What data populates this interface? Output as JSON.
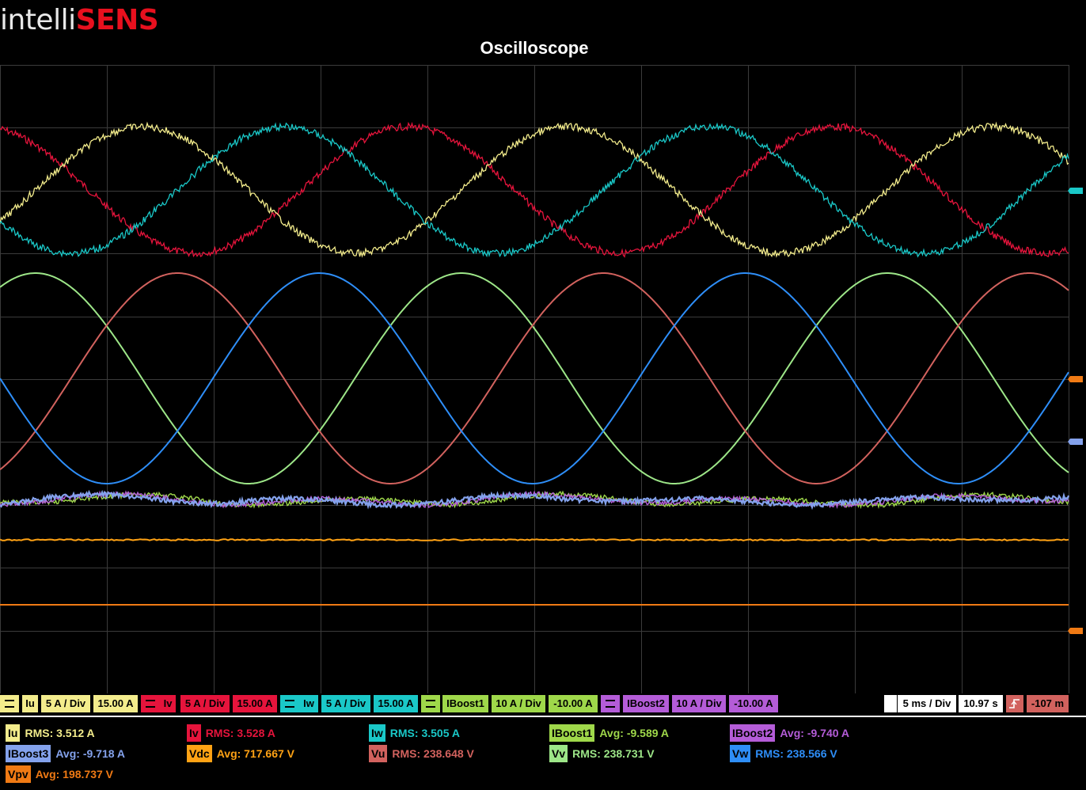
{
  "brand": {
    "part1": "intelli",
    "part2": "SENS"
  },
  "title": "Oscilloscope",
  "colors": {
    "Iu": "#f3ec8c",
    "Iv": "#e6143c",
    "Iw": "#1ac8c8",
    "IBoost1": "#9fd84a",
    "IBoost2": "#b45cd8",
    "IBoost3": "#84a2ec",
    "Vdc": "#ffa214",
    "Vpv": "#f07a14",
    "Vu": "#d2625e",
    "Vv": "#9de688",
    "Vw": "#2e8ef8",
    "grid": "#3b3b3b"
  },
  "channels": [
    {
      "name": "Iu",
      "scale": "5 A / Div",
      "offset": "15.00 A",
      "color": "#f3ec8c"
    },
    {
      "name": "Iv",
      "scale": "5 A / Div",
      "offset": "15.00 A",
      "color": "#e6143c"
    },
    {
      "name": "Iw",
      "scale": "5 A / Div",
      "offset": "15.00 A",
      "color": "#1ac8c8"
    },
    {
      "name": "IBoost1",
      "scale": "10 A / Div",
      "offset": "-10.00 A",
      "color": "#9fd84a"
    },
    {
      "name": "IBoost2",
      "scale": "10 A / Div",
      "offset": "-10.00 A",
      "color": "#b45cd8"
    }
  ],
  "timebase": {
    "scale": "5 ms / Div",
    "time": "10.97 s",
    "trigger_level": "-107 m",
    "trigger_icon": "trigger-rising-edge-icon"
  },
  "measurements": [
    {
      "label": "Iu",
      "value": "RMS: 3.512 A",
      "color": "#f3ec8c"
    },
    {
      "label": "Iv",
      "value": "RMS: 3.528 A",
      "color": "#e6143c"
    },
    {
      "label": "Iw",
      "value": "RMS: 3.505 A",
      "color": "#1ac8c8"
    },
    {
      "label": "IBoost1",
      "value": "Avg: -9.589 A",
      "color": "#9fd84a"
    },
    {
      "label": "IBoost2",
      "value": "Avg: -9.740 A",
      "color": "#b45cd8"
    },
    {
      "label": "IBoost3",
      "value": "Avg: -9.718 A",
      "color": "#84a2ec"
    },
    {
      "label": "Vdc",
      "value": "Avg: 717.667 V",
      "color": "#ffa214"
    },
    {
      "label": "Vu",
      "value": "RMS: 238.648 V",
      "color": "#d2625e"
    },
    {
      "label": "Vv",
      "value": "RMS: 238.731 V",
      "color": "#9de688"
    },
    {
      "label": "Vw",
      "value": "RMS: 238.566 V",
      "color": "#2e8ef8"
    },
    {
      "label": "Vpv",
      "value": "Avg: 198.737 V",
      "color": "#f07a14"
    }
  ]
}
